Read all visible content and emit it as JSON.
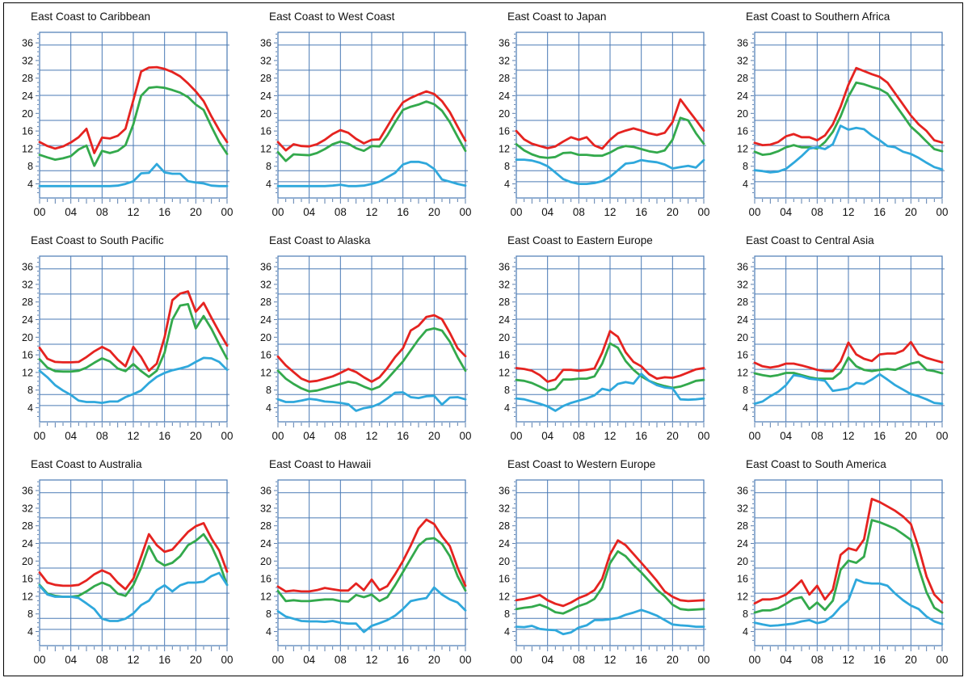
{
  "page": {
    "background": "#ffffff",
    "border_color": "#000000"
  },
  "colors": {
    "series_red": "#e52320",
    "series_green": "#33a94c",
    "series_blue": "#2fa8dc",
    "grid": "#4a7ab5",
    "tick": "#5b7fae",
    "label": "#111111"
  },
  "chart_data": {
    "type": "line",
    "x_hours_range": [
      0,
      24
    ],
    "x_tick_labels": [
      "00",
      "04",
      "08",
      "12",
      "16",
      "20",
      "00"
    ],
    "x_label_hours": [
      0,
      4,
      8,
      12,
      16,
      20,
      24
    ],
    "y_tick_labels": [
      "36",
      "32",
      "28",
      "24",
      "20",
      "16",
      "12",
      "8",
      "4"
    ],
    "y_tick_values": [
      36,
      32,
      28,
      24,
      20,
      16,
      12,
      8,
      4
    ],
    "ylim": [
      0.8,
      38.4
    ],
    "grid_hours": [
      4,
      8,
      12,
      16,
      20
    ],
    "grid_freqs": [
      4.5,
      7.0,
      12.7,
      18.4,
      24.1,
      29.8,
      35.5
    ],
    "grid_on": true,
    "legend": "none",
    "series_names": [
      "red",
      "green",
      "blue"
    ],
    "charts": [
      {
        "title": "East Coast to Caribbean",
        "red": [
          13.5,
          12.6,
          12.0,
          12.5,
          13.4,
          14.6,
          16.5,
          11.0,
          14.5,
          14.3,
          14.9,
          16.5,
          23.0,
          29.5,
          30.4,
          30.5,
          30.1,
          29.4,
          28.4,
          26.8,
          25.0,
          22.8,
          19.3,
          16.2,
          13.5
        ],
        "green": [
          10.6,
          10.0,
          9.5,
          9.8,
          10.3,
          11.8,
          12.7,
          8.1,
          11.5,
          11.0,
          11.5,
          12.8,
          17.5,
          24.0,
          25.8,
          26.0,
          25.8,
          25.3,
          24.7,
          23.7,
          22.0,
          20.8,
          17.0,
          13.5,
          10.8
        ],
        "blue": [
          3.5,
          3.5,
          3.5,
          3.5,
          3.5,
          3.5,
          3.5,
          3.5,
          3.5,
          3.5,
          3.6,
          4.0,
          4.6,
          6.4,
          6.5,
          8.5,
          6.6,
          6.3,
          6.3,
          4.6,
          4.3,
          4.1,
          3.6,
          3.5,
          3.5
        ]
      },
      {
        "title": "East Coast to West Coast",
        "red": [
          13.5,
          11.6,
          13.0,
          12.6,
          12.5,
          13.0,
          14.0,
          15.3,
          16.2,
          15.6,
          14.2,
          13.2,
          14.0,
          14.1,
          17.0,
          20.0,
          22.5,
          23.5,
          24.3,
          25.0,
          24.4,
          22.8,
          20.3,
          17.0,
          13.8
        ],
        "green": [
          11.2,
          9.2,
          10.7,
          10.6,
          10.5,
          11.0,
          11.9,
          13.0,
          13.6,
          13.1,
          12.1,
          11.5,
          12.6,
          12.5,
          15.0,
          18.0,
          20.8,
          21.5,
          22.0,
          22.7,
          22.1,
          20.6,
          18.0,
          14.7,
          11.5
        ],
        "blue": [
          3.5,
          3.5,
          3.5,
          3.5,
          3.5,
          3.5,
          3.5,
          3.6,
          3.8,
          3.5,
          3.5,
          3.6,
          4.0,
          4.5,
          5.5,
          6.5,
          8.4,
          9.0,
          9.0,
          8.6,
          7.4,
          5.0,
          4.5,
          4.0,
          3.6
        ]
      },
      {
        "title": "East Coast to Japan",
        "red": [
          16.0,
          14.1,
          13.1,
          12.6,
          12.1,
          12.5,
          13.6,
          14.6,
          14.0,
          14.6,
          12.7,
          12.0,
          14.0,
          15.5,
          16.1,
          16.6,
          16.1,
          15.5,
          15.1,
          15.6,
          18.0,
          23.2,
          20.8,
          18.5,
          16.1
        ],
        "green": [
          13.0,
          11.6,
          10.7,
          10.1,
          9.9,
          10.1,
          11.0,
          11.1,
          10.6,
          10.6,
          10.4,
          10.4,
          11.1,
          12.1,
          12.6,
          12.4,
          11.9,
          11.4,
          11.1,
          11.6,
          14.0,
          19.0,
          18.4,
          15.5,
          13.1
        ],
        "blue": [
          9.5,
          9.5,
          9.3,
          8.8,
          8.0,
          6.6,
          5.1,
          4.4,
          4.0,
          4.0,
          4.2,
          4.6,
          5.6,
          7.1,
          8.6,
          8.8,
          9.4,
          9.1,
          8.9,
          8.4,
          7.5,
          7.8,
          8.1,
          7.7,
          9.4
        ]
      },
      {
        "title": "East Coast to Southern Africa",
        "red": [
          13.3,
          12.8,
          12.9,
          13.5,
          14.8,
          15.3,
          14.6,
          14.6,
          13.9,
          15.0,
          17.5,
          21.5,
          26.5,
          30.3,
          29.6,
          28.9,
          28.3,
          27.0,
          24.5,
          22.0,
          19.5,
          17.5,
          16.0,
          13.9,
          13.4
        ],
        "green": [
          11.3,
          10.6,
          10.8,
          11.4,
          12.3,
          12.8,
          12.3,
          12.3,
          12.0,
          13.5,
          15.8,
          19.3,
          23.8,
          27.0,
          26.6,
          26.0,
          25.5,
          24.5,
          22.0,
          19.5,
          17.0,
          15.4,
          13.6,
          11.9,
          11.4
        ],
        "blue": [
          7.1,
          6.9,
          6.6,
          6.8,
          7.4,
          8.8,
          10.3,
          12.0,
          12.3,
          11.9,
          13.0,
          17.2,
          16.3,
          16.7,
          16.4,
          15.0,
          13.9,
          12.6,
          12.3,
          11.3,
          10.8,
          9.9,
          8.8,
          7.8,
          7.3
        ]
      },
      {
        "title": "East Coast to South Pacific",
        "red": [
          17.6,
          15.1,
          14.4,
          14.3,
          14.3,
          14.4,
          15.5,
          16.8,
          17.8,
          16.9,
          14.9,
          13.4,
          17.8,
          15.5,
          12.4,
          14.0,
          20.0,
          28.4,
          29.9,
          30.4,
          25.8,
          27.8,
          24.4,
          21.2,
          18.1
        ],
        "green": [
          15.0,
          13.1,
          12.3,
          12.2,
          12.2,
          12.4,
          13.1,
          14.2,
          15.2,
          14.5,
          12.9,
          12.3,
          13.9,
          12.3,
          11.0,
          12.4,
          16.5,
          24.0,
          27.2,
          27.5,
          22.0,
          24.8,
          21.9,
          18.4,
          15.1
        ],
        "blue": [
          12.4,
          10.9,
          9.1,
          7.9,
          6.9,
          5.6,
          5.3,
          5.3,
          5.1,
          5.4,
          5.4,
          6.4,
          7.1,
          7.9,
          9.6,
          11.0,
          11.9,
          12.5,
          12.9,
          13.4,
          14.4,
          15.3,
          15.2,
          14.4,
          12.6
        ]
      },
      {
        "title": "East Coast to Alaska",
        "red": [
          15.6,
          13.6,
          12.1,
          10.6,
          9.9,
          10.1,
          10.6,
          11.1,
          11.9,
          12.8,
          12.1,
          10.9,
          9.9,
          10.9,
          13.0,
          15.5,
          17.5,
          21.5,
          22.6,
          24.6,
          25.0,
          24.1,
          21.0,
          17.5,
          15.7
        ],
        "green": [
          12.4,
          10.6,
          9.4,
          8.4,
          7.7,
          7.9,
          8.4,
          8.9,
          9.4,
          9.9,
          9.6,
          8.8,
          8.1,
          8.8,
          10.5,
          12.5,
          14.5,
          17.0,
          19.5,
          21.6,
          22.0,
          21.5,
          19.0,
          15.5,
          12.4
        ],
        "blue": [
          5.9,
          5.3,
          5.3,
          5.6,
          6.0,
          5.8,
          5.4,
          5.3,
          5.1,
          4.8,
          3.3,
          3.9,
          4.2,
          4.9,
          6.1,
          7.4,
          7.5,
          6.4,
          6.2,
          6.6,
          6.7,
          4.7,
          6.3,
          6.4,
          5.9
        ]
      },
      {
        "title": "East Coast to Eastern Europe",
        "red": [
          13.0,
          12.8,
          12.4,
          11.4,
          9.9,
          10.4,
          12.6,
          12.6,
          12.4,
          12.6,
          12.9,
          16.5,
          21.4,
          20.1,
          16.6,
          14.4,
          13.4,
          11.6,
          10.6,
          10.9,
          10.8,
          11.3,
          12.0,
          12.7,
          13.0
        ],
        "green": [
          10.3,
          10.1,
          9.6,
          8.8,
          7.9,
          8.3,
          10.4,
          10.4,
          10.6,
          10.6,
          11.1,
          14.0,
          18.6,
          17.6,
          14.6,
          12.6,
          11.1,
          10.1,
          9.4,
          8.9,
          8.5,
          8.8,
          9.4,
          10.1,
          10.3
        ],
        "blue": [
          6.1,
          5.9,
          5.4,
          4.9,
          4.3,
          3.3,
          4.4,
          5.1,
          5.6,
          6.1,
          6.8,
          8.3,
          7.9,
          9.4,
          9.8,
          9.5,
          11.7,
          10.1,
          9.1,
          8.6,
          8.4,
          5.9,
          5.8,
          5.9,
          6.1
        ]
      },
      {
        "title": "East Coast to Central Asia",
        "red": [
          14.2,
          13.4,
          13.1,
          13.4,
          14.0,
          14.0,
          13.6,
          13.1,
          12.6,
          12.3,
          12.3,
          14.5,
          18.8,
          16.1,
          15.1,
          14.6,
          16.1,
          16.3,
          16.3,
          17.0,
          18.9,
          16.1,
          15.3,
          14.8,
          14.3
        ],
        "green": [
          11.8,
          11.4,
          11.1,
          11.4,
          11.9,
          11.9,
          11.4,
          10.9,
          10.6,
          10.6,
          10.6,
          12.0,
          15.4,
          13.4,
          12.6,
          12.3,
          12.6,
          12.8,
          12.6,
          13.3,
          14.0,
          14.4,
          12.6,
          12.3,
          11.8
        ],
        "blue": [
          4.9,
          5.4,
          6.6,
          7.6,
          9.1,
          11.4,
          11.1,
          10.6,
          10.4,
          10.1,
          7.8,
          8.1,
          8.4,
          9.6,
          9.4,
          10.4,
          11.6,
          10.4,
          9.1,
          8.1,
          7.1,
          6.6,
          5.9,
          5.1,
          4.9
        ]
      },
      {
        "title": "East Coast to Australia",
        "red": [
          17.4,
          15.1,
          14.6,
          14.4,
          14.4,
          14.6,
          15.6,
          17.0,
          17.9,
          17.1,
          15.1,
          13.6,
          16.0,
          21.0,
          26.1,
          23.6,
          22.1,
          22.6,
          24.6,
          26.6,
          27.9,
          28.6,
          25.1,
          22.4,
          17.6
        ],
        "green": [
          14.6,
          12.6,
          12.1,
          11.9,
          11.9,
          12.1,
          13.1,
          14.3,
          15.1,
          14.4,
          12.6,
          12.1,
          14.5,
          18.5,
          23.4,
          20.1,
          19.0,
          19.6,
          21.1,
          23.6,
          24.6,
          26.1,
          23.4,
          19.6,
          14.6
        ],
        "blue": [
          14.4,
          12.4,
          11.9,
          11.9,
          11.9,
          11.6,
          10.4,
          9.1,
          6.9,
          6.4,
          6.4,
          6.9,
          8.1,
          10.0,
          11.0,
          13.4,
          14.5,
          13.1,
          14.5,
          15.1,
          15.1,
          15.3,
          16.6,
          17.3,
          14.6
        ]
      },
      {
        "title": "East Coast to Hawaii",
        "red": [
          14.2,
          13.1,
          13.3,
          13.1,
          13.1,
          13.4,
          13.9,
          13.6,
          13.3,
          13.3,
          14.9,
          13.4,
          15.8,
          13.4,
          14.3,
          17.0,
          20.0,
          23.5,
          27.4,
          29.4,
          28.4,
          25.6,
          23.4,
          18.5,
          14.4
        ],
        "green": [
          13.2,
          10.9,
          11.1,
          10.9,
          10.9,
          11.1,
          11.3,
          11.3,
          10.9,
          10.8,
          12.3,
          11.8,
          12.4,
          10.9,
          11.8,
          14.5,
          17.5,
          20.5,
          23.5,
          25.0,
          25.2,
          23.9,
          21.1,
          16.6,
          13.3
        ],
        "blue": [
          8.6,
          7.4,
          6.9,
          6.4,
          6.3,
          6.3,
          6.2,
          6.4,
          6.0,
          5.8,
          5.8,
          3.9,
          5.3,
          5.9,
          6.6,
          7.6,
          9.1,
          10.9,
          11.3,
          11.6,
          14.0,
          12.4,
          11.3,
          10.6,
          8.8
        ]
      },
      {
        "title": "East Coast to Western Europe",
        "red": [
          11.1,
          11.4,
          11.8,
          12.3,
          11.1,
          10.3,
          9.8,
          10.6,
          11.6,
          12.3,
          13.4,
          16.0,
          21.5,
          24.7,
          23.6,
          21.6,
          19.6,
          17.6,
          15.5,
          13.1,
          11.9,
          11.1,
          10.9,
          11.0,
          11.1
        ],
        "green": [
          9.1,
          9.4,
          9.6,
          10.1,
          9.4,
          8.4,
          8.1,
          8.9,
          9.8,
          10.4,
          11.4,
          14.0,
          19.5,
          22.2,
          21.1,
          19.1,
          17.4,
          15.5,
          13.5,
          12.0,
          10.1,
          9.1,
          8.9,
          9.0,
          9.1
        ],
        "blue": [
          5.1,
          5.0,
          5.3,
          4.6,
          4.4,
          4.3,
          3.4,
          3.8,
          4.9,
          5.4,
          6.6,
          6.6,
          6.8,
          7.1,
          7.8,
          8.3,
          8.9,
          8.3,
          7.6,
          6.6,
          5.6,
          5.4,
          5.3,
          5.1,
          5.1
        ]
      },
      {
        "title": "East Coast to South America",
        "red": [
          10.4,
          11.3,
          11.3,
          11.6,
          12.4,
          13.9,
          15.6,
          12.4,
          14.4,
          11.3,
          13.5,
          21.4,
          22.9,
          22.4,
          24.9,
          34.1,
          33.4,
          32.4,
          31.4,
          30.1,
          28.4,
          23.0,
          16.5,
          12.4,
          10.6
        ],
        "green": [
          8.3,
          8.8,
          8.8,
          9.3,
          10.3,
          11.4,
          11.8,
          9.1,
          10.6,
          8.9,
          11.0,
          18.0,
          20.1,
          19.6,
          21.0,
          29.3,
          28.8,
          28.1,
          27.3,
          26.1,
          24.8,
          18.4,
          12.9,
          9.4,
          8.3
        ],
        "blue": [
          6.0,
          5.6,
          5.3,
          5.4,
          5.6,
          5.8,
          6.3,
          6.6,
          5.9,
          6.3,
          7.6,
          9.6,
          11.1,
          15.8,
          15.1,
          14.9,
          14.9,
          14.4,
          12.6,
          11.1,
          9.9,
          9.1,
          7.4,
          6.3,
          5.7
        ]
      }
    ]
  }
}
